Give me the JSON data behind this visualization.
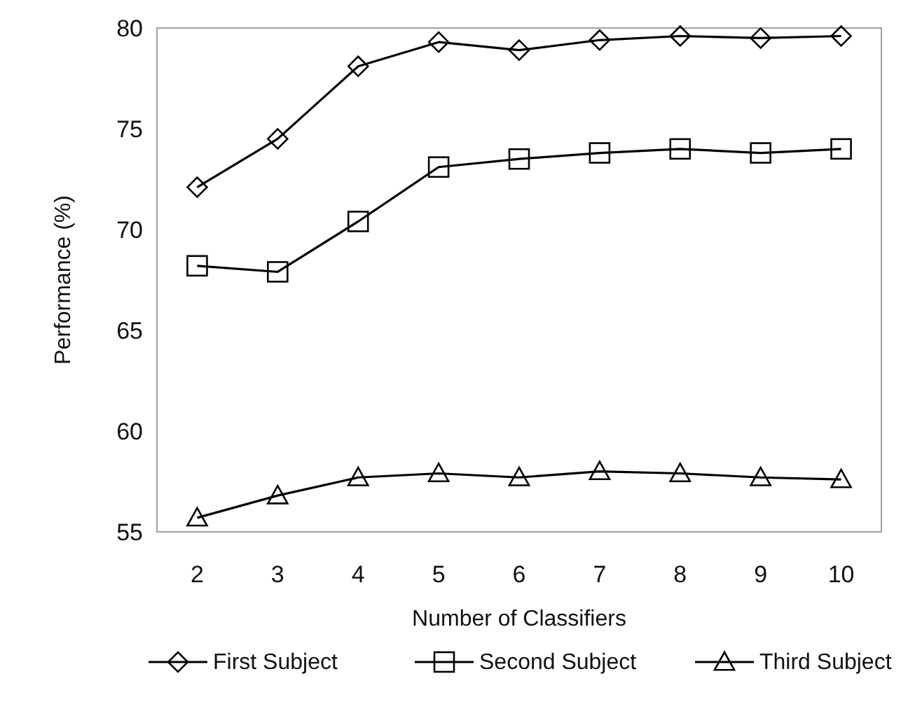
{
  "chart_data": {
    "type": "line",
    "xlabel": "Number of Classifiers",
    "ylabel": "Performance (%)",
    "categories": [
      "2",
      "3",
      "4",
      "5",
      "6",
      "7",
      "8",
      "9",
      "10"
    ],
    "ylim": [
      55,
      80
    ],
    "yticks": [
      55,
      60,
      65,
      70,
      75,
      80
    ],
    "grid": false,
    "legend": "bottom",
    "line_style": "solid",
    "series": [
      {
        "name": "First Subject",
        "color": "#000000",
        "marker": "diamond",
        "values": [
          72.1,
          74.5,
          78.1,
          79.3,
          78.9,
          79.4,
          79.6,
          79.5,
          79.6
        ]
      },
      {
        "name": "Second Subject",
        "color": "#000000",
        "marker": "square",
        "values": [
          68.2,
          67.9,
          70.4,
          73.1,
          73.5,
          73.8,
          74.0,
          73.8,
          74.0
        ]
      },
      {
        "name": "Third Subject",
        "color": "#000000",
        "marker": "triangle",
        "values": [
          55.7,
          56.8,
          57.7,
          57.9,
          57.7,
          58.0,
          57.9,
          57.7,
          57.6
        ]
      }
    ]
  }
}
